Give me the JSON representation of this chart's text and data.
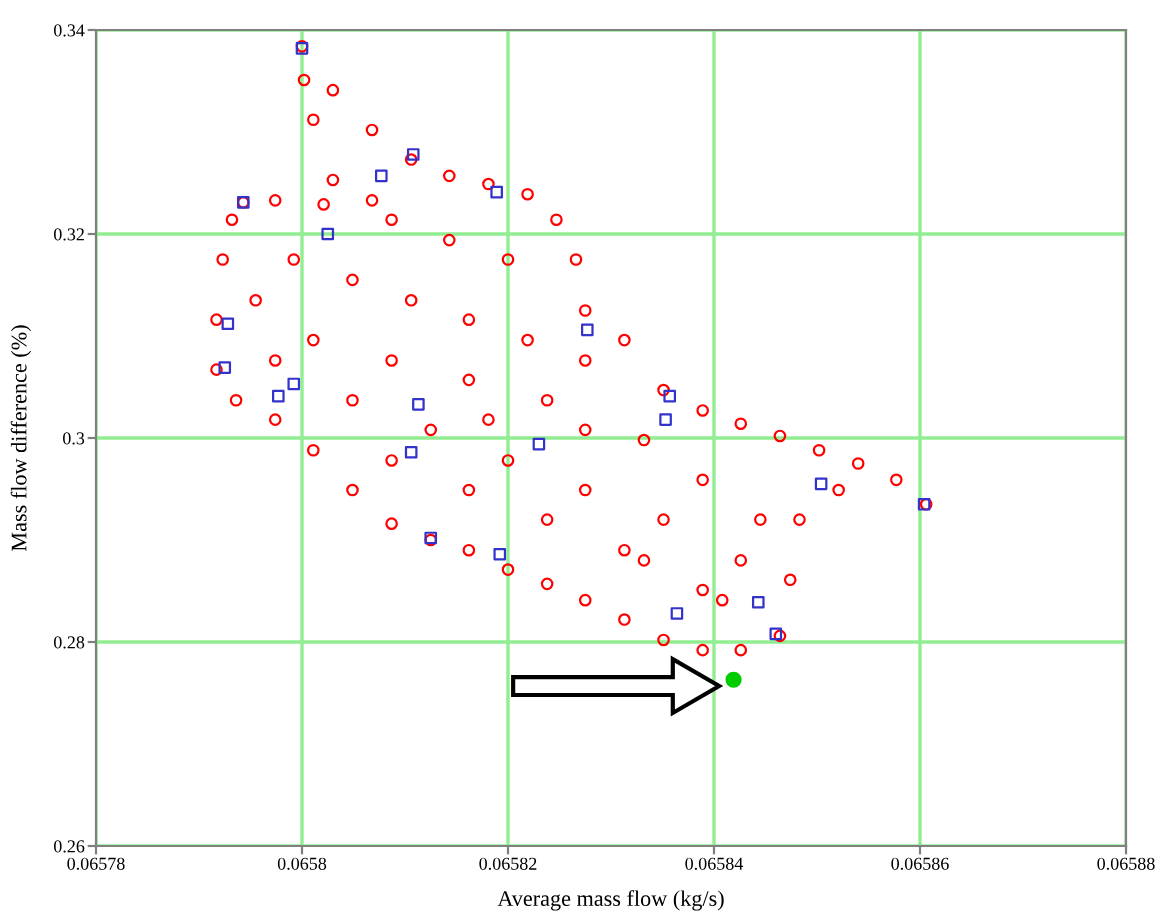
{
  "chart_data": {
    "type": "scatter",
    "xlabel": "Average mass flow (kg/s)",
    "ylabel": "Mass flow difference (%)",
    "xlim": [
      0.06578,
      0.06588
    ],
    "ylim": [
      0.26,
      0.34
    ],
    "xticks": [
      0.06578,
      0.0658,
      0.06582,
      0.06584,
      0.06586,
      0.06588
    ],
    "yticks": [
      0.26,
      0.28,
      0.3,
      0.32,
      0.34
    ],
    "grid": true,
    "legend": false,
    "series": [
      {
        "color": "#ff0000",
        "marker": "circle",
        "x": [
          0.0658,
          0.065803,
          0.0658068,
          0.0658106,
          0.0658143,
          0.0658181,
          0.0658219,
          0.0658247,
          0.0658266,
          0.0658275,
          0.0658313,
          0.0658351,
          0.0658389,
          0.0658426,
          0.0658464,
          0.0658502,
          0.065854,
          0.0658577,
          0.0658606,
          0.0658521,
          0.0658483,
          0.0658474,
          0.0658464,
          0.0658426,
          0.0658389,
          0.0658351,
          0.0658313,
          0.0658275,
          0.0658238,
          0.06582,
          0.0658162,
          0.0658125,
          0.0658087,
          0.0658049,
          0.0658011,
          0.0657974,
          0.0657936,
          0.0657917,
          0.0657917,
          0.0657923,
          0.0657932,
          0.0657943,
          0.0657974,
          0.0658021,
          0.065803,
          0.0658011,
          0.0658002,
          0.0657992,
          0.0658049,
          0.0658106,
          0.0658162,
          0.0658219,
          0.0657955,
          0.0658011,
          0.0658087,
          0.0658162,
          0.0658238,
          0.0657974,
          0.0658049,
          0.0658125,
          0.06582,
          0.0658275,
          0.0658351,
          0.0658426,
          0.0658087,
          0.0658162,
          0.0658238,
          0.0658313,
          0.0658389,
          0.0658275,
          0.0658332,
          0.0658389,
          0.0658445,
          0.0658408,
          0.0658087,
          0.0658143,
          0.06582,
          0.0658068,
          0.0658332,
          0.0658275,
          0.0658181
        ],
        "values": [
          0.3384,
          0.3341,
          0.3302,
          0.3273,
          0.3257,
          0.3249,
          0.3239,
          0.3214,
          0.3175,
          0.3125,
          0.3096,
          0.3047,
          0.3027,
          0.3014,
          0.3002,
          0.2988,
          0.2975,
          0.2959,
          0.2935,
          0.2949,
          0.292,
          0.2861,
          0.2806,
          0.2792,
          0.2792,
          0.2802,
          0.2822,
          0.2841,
          0.2857,
          0.2871,
          0.289,
          0.29,
          0.2916,
          0.2949,
          0.2988,
          0.3018,
          0.3037,
          0.3067,
          0.3116,
          0.3175,
          0.3214,
          0.3231,
          0.3233,
          0.3229,
          0.3253,
          0.3312,
          0.3351,
          0.3175,
          0.3155,
          0.3135,
          0.3116,
          0.3096,
          0.3135,
          0.3096,
          0.3076,
          0.3057,
          0.3037,
          0.3076,
          0.3037,
          0.3008,
          0.2978,
          0.2949,
          0.292,
          0.288,
          0.2978,
          0.2949,
          0.292,
          0.289,
          0.2851,
          0.3076,
          0.2998,
          0.2959,
          0.292,
          0.2841,
          0.3214,
          0.3194,
          0.3175,
          0.3233,
          0.288,
          0.3008,
          0.3018
        ]
      },
      {
        "color": "#3333cc",
        "marker": "square",
        "x": [
          0.0658,
          0.0658108,
          0.0658077,
          0.0658189,
          0.0657943,
          0.0658025,
          0.0657928,
          0.0657925,
          0.0657992,
          0.0657977,
          0.0658113,
          0.0658277,
          0.0658357,
          0.0658353,
          0.0658106,
          0.065823,
          0.0658125,
          0.0658192,
          0.0658364,
          0.0658504,
          0.0658604,
          0.0658443,
          0.065846
        ],
        "values": [
          0.3382,
          0.3278,
          0.3257,
          0.3241,
          0.3231,
          0.32,
          0.3112,
          0.3069,
          0.3053,
          0.3041,
          0.3033,
          0.3106,
          0.3041,
          0.3018,
          0.2986,
          0.2994,
          0.2902,
          0.2886,
          0.2828,
          0.2955,
          0.2935,
          0.2839,
          0.2808
        ]
      },
      {
        "color": "#00cc00",
        "marker": "circle",
        "x": [
          0.0658419
        ],
        "values": [
          0.2763
        ]
      }
    ]
  }
}
